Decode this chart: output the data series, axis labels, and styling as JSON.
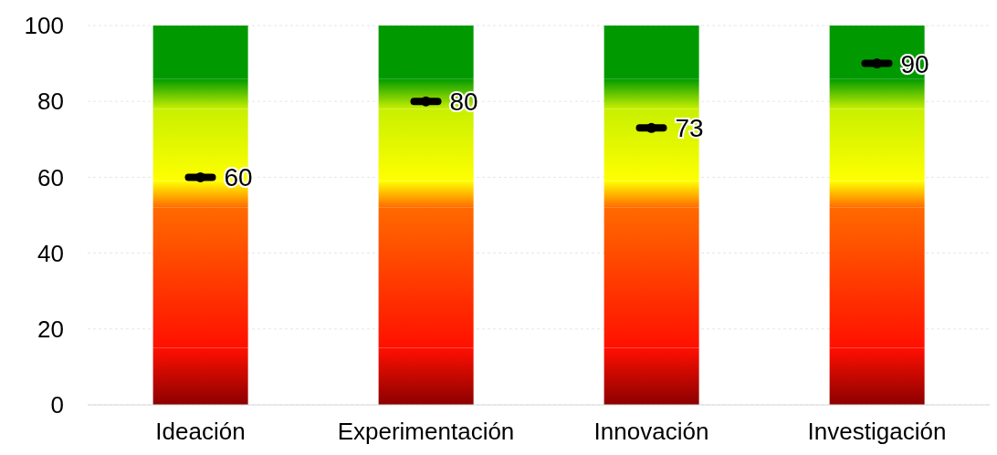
{
  "chart_data": {
    "type": "bar",
    "stacked": true,
    "categories": [
      "Ideación",
      "Experimentación",
      "Innovación",
      "Investigación"
    ],
    "series": [
      {
        "color": "#8b0000",
        "values": [
          15,
          15,
          15,
          15
        ]
      },
      {
        "color": "#ff1000",
        "values": [
          37,
          37,
          37,
          37
        ]
      },
      {
        "color": "#ff6a00",
        "values": [
          7,
          7,
          7,
          7
        ]
      },
      {
        "color": "#ffff00",
        "values": [
          19,
          19,
          19,
          19
        ]
      },
      {
        "color": "#c8f000",
        "values": [
          8,
          8,
          8,
          8
        ]
      },
      {
        "color": "#009a00",
        "values": [
          14,
          14,
          14,
          14
        ]
      },
      {
        "type": "scatter",
        "color": "#000000",
        "values": [
          60,
          80,
          73,
          90
        ],
        "value_labels": [
          "60",
          "80",
          "73",
          "90"
        ]
      }
    ],
    "ylim": [
      0,
      100
    ],
    "yticks": [
      0,
      20,
      40,
      60,
      80,
      100
    ],
    "grid": "y",
    "legend": false
  }
}
